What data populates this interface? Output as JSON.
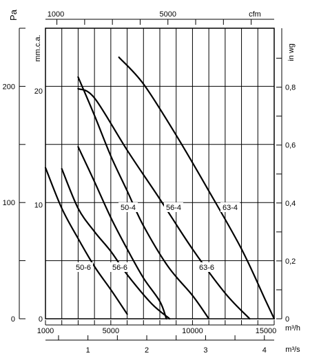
{
  "chart_data": {
    "type": "line",
    "x_axis": {
      "label": "m³/h",
      "ticks": [
        1000,
        5000,
        10000,
        15000
      ],
      "range": [
        1000,
        15000
      ]
    },
    "y_axis": {
      "label": "Pa",
      "ticks": [
        0,
        100,
        200
      ],
      "range": [
        0,
        250
      ]
    },
    "axes_extra": {
      "top_cfm": {
        "label": "cfm",
        "ticks": [
          1000,
          5000
        ]
      },
      "inner_mmca": {
        "label": "mm.c.a.",
        "ticks": [
          0,
          10,
          20
        ]
      },
      "right_inwg": {
        "label": "in wg",
        "ticks": [
          "0",
          "0,2",
          "0,4",
          "0,6",
          "0,8"
        ]
      },
      "bottom_m3s": {
        "label": "m³/s",
        "ticks": [
          1,
          2,
          3,
          4
        ]
      }
    },
    "grid": true,
    "series": [
      {
        "name": "50-6",
        "points": [
          [
            1000,
            130
          ],
          [
            2000,
            95
          ],
          [
            3000,
            69
          ],
          [
            4000,
            45
          ],
          [
            5000,
            25
          ],
          [
            6000,
            4
          ]
        ]
      },
      {
        "name": "56-6",
        "points": [
          [
            2000,
            129
          ],
          [
            3000,
            95
          ],
          [
            4000,
            75
          ],
          [
            5000,
            58
          ],
          [
            6000,
            38
          ],
          [
            7500,
            13
          ],
          [
            8600,
            0
          ]
        ]
      },
      {
        "name": "50-4",
        "points": [
          [
            3000,
            148
          ],
          [
            4000,
            118
          ],
          [
            5000,
            87
          ],
          [
            6000,
            60
          ],
          [
            7000,
            35
          ],
          [
            8000,
            15
          ],
          [
            8400,
            0
          ]
        ]
      },
      {
        "name": "56-4",
        "points": [
          [
            3000,
            208
          ],
          [
            4000,
            175
          ],
          [
            5000,
            140
          ],
          [
            6000,
            110
          ],
          [
            7000,
            80
          ],
          [
            8500,
            45
          ],
          [
            10000,
            20
          ],
          [
            11000,
            0
          ]
        ]
      },
      {
        "name": "63-6",
        "points": [
          [
            3000,
            198
          ],
          [
            4000,
            190
          ],
          [
            6000,
            145
          ],
          [
            8000,
            103
          ],
          [
            10000,
            60
          ],
          [
            12000,
            22
          ],
          [
            13500,
            0
          ]
        ]
      },
      {
        "name": "63-4",
        "points": [
          [
            5500,
            225
          ],
          [
            7000,
            202
          ],
          [
            9000,
            158
          ],
          [
            11000,
            110
          ],
          [
            13000,
            60
          ],
          [
            14500,
            15
          ],
          [
            15000,
            0
          ]
        ]
      }
    ]
  }
}
